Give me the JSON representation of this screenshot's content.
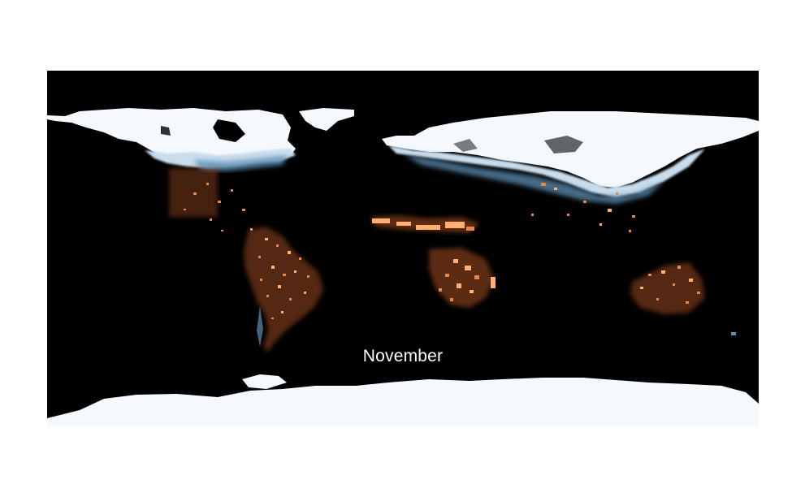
{
  "map": {
    "month_label": "November",
    "projection": "equirectangular",
    "background_color": "#000000",
    "colors": {
      "snow": "#f5f9fd",
      "snow_mid": "#c9dded",
      "snow_edge": "#5f8fb5",
      "fire_bright": "#ffb070",
      "fire": "#e8864a",
      "fire_dark": "#9a4a22"
    },
    "layers": [
      "snow-ice-cover",
      "fire-activity"
    ]
  }
}
